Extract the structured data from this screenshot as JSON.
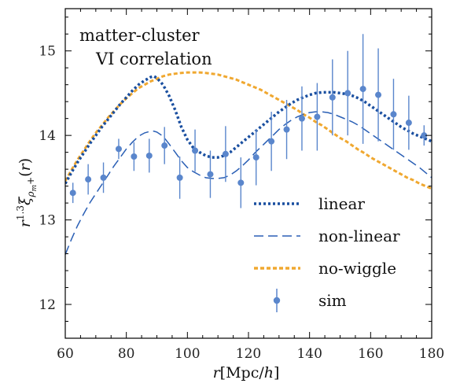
{
  "chart_data": {
    "type": "line",
    "xlabel": "r[Mpc/h]",
    "ylabel": "r^{1.3} ξ_{ρm+}(r)",
    "annotation": [
      "matter-cluster",
      "VI correlation"
    ],
    "xlim": [
      60,
      180
    ],
    "ylim": [
      11.6,
      15.5
    ],
    "xticks": [
      60,
      80,
      100,
      120,
      140,
      160,
      180
    ],
    "yticks": [
      12,
      13,
      14,
      15
    ],
    "legend_position": "lower-right",
    "colors": {
      "linear": "#1a4fa0",
      "nonlinear": "#2a5fb5",
      "nowiggle": "#f0a830",
      "sim": "#5a86cc"
    },
    "series": [
      {
        "name": "linear",
        "style": "dotted",
        "x": [
          60,
          62,
          64,
          66,
          68,
          70,
          72,
          74,
          76,
          78,
          80,
          82,
          84,
          86,
          88,
          89,
          90,
          92,
          94,
          96,
          98,
          100,
          102,
          104,
          106,
          108,
          110,
          112,
          114,
          116,
          118,
          120,
          122,
          124,
          126,
          128,
          130,
          132,
          134,
          136,
          138,
          140,
          142,
          144,
          146,
          148,
          150,
          152,
          154,
          156,
          158,
          160,
          162,
          164,
          166,
          168,
          170,
          172,
          174,
          176,
          178,
          180
        ],
        "y": [
          13.43,
          13.56,
          13.68,
          13.79,
          13.9,
          14,
          14.1,
          14.19,
          14.28,
          14.37,
          14.45,
          14.53,
          14.6,
          14.65,
          14.69,
          14.7,
          14.68,
          14.6,
          14.47,
          14.3,
          14.1,
          13.95,
          13.85,
          13.8,
          13.76,
          13.74,
          13.74,
          13.76,
          13.8,
          13.86,
          13.92,
          13.98,
          14.04,
          14.1,
          14.16,
          14.22,
          14.28,
          14.33,
          14.38,
          14.42,
          14.45,
          14.48,
          14.5,
          14.51,
          14.51,
          14.51,
          14.5,
          14.49,
          14.47,
          14.44,
          14.4,
          14.35,
          14.3,
          14.25,
          14.2,
          14.15,
          14.1,
          14.06,
          14.02,
          13.99,
          13.96,
          13.93
        ]
      },
      {
        "name": "non-linear",
        "style": "dashed",
        "x": [
          60,
          62,
          64,
          66,
          68,
          70,
          72,
          74,
          76,
          78,
          80,
          82,
          84,
          86,
          88,
          89,
          90,
          92,
          94,
          96,
          98,
          100,
          102,
          104,
          106,
          108,
          110,
          112,
          114,
          116,
          118,
          120,
          122,
          124,
          126,
          128,
          130,
          132,
          134,
          136,
          138,
          140,
          142,
          144,
          146,
          148,
          150,
          152,
          154,
          156,
          158,
          160,
          162,
          164,
          166,
          168,
          170,
          172,
          174,
          176,
          178,
          180
        ],
        "y": [
          12.59,
          12.77,
          12.93,
          13.07,
          13.2,
          13.31,
          13.42,
          13.53,
          13.64,
          13.74,
          13.84,
          13.92,
          13.99,
          14.03,
          14.05,
          14.05,
          14.04,
          13.99,
          13.9,
          13.8,
          13.7,
          13.62,
          13.57,
          13.53,
          13.5,
          13.49,
          13.49,
          13.5,
          13.53,
          13.58,
          13.64,
          13.71,
          13.79,
          13.86,
          13.93,
          14,
          14.07,
          14.13,
          14.18,
          14.22,
          14.25,
          14.27,
          14.28,
          14.28,
          14.27,
          14.25,
          14.22,
          14.19,
          14.16,
          14.12,
          14.07,
          14.02,
          13.97,
          13.92,
          13.87,
          13.82,
          13.77,
          13.72,
          13.67,
          13.62,
          13.56,
          13.5
        ]
      },
      {
        "name": "no-wiggle",
        "style": "dashed",
        "x": [
          60,
          62,
          64,
          66,
          68,
          70,
          72,
          74,
          76,
          78,
          80,
          82,
          84,
          86,
          88,
          90,
          92,
          94,
          96,
          98,
          100,
          102,
          104,
          106,
          108,
          110,
          112,
          114,
          116,
          118,
          120,
          122,
          124,
          126,
          128,
          130,
          132,
          134,
          136,
          138,
          140,
          142,
          144,
          146,
          148,
          150,
          152,
          154,
          156,
          158,
          160,
          162,
          164,
          166,
          168,
          170,
          172,
          174,
          176,
          178,
          180
        ],
        "y": [
          13.46,
          13.59,
          13.71,
          13.82,
          13.93,
          14.03,
          14.12,
          14.21,
          14.29,
          14.37,
          14.44,
          14.5,
          14.56,
          14.6,
          14.64,
          14.67,
          14.7,
          14.72,
          14.73,
          14.74,
          14.745,
          14.745,
          14.745,
          14.74,
          14.73,
          14.72,
          14.7,
          14.68,
          14.66,
          14.63,
          14.6,
          14.57,
          14.54,
          14.5,
          14.46,
          14.42,
          14.38,
          14.34,
          14.3,
          14.25,
          14.21,
          14.16,
          14.12,
          14.07,
          14.02,
          13.97,
          13.93,
          13.88,
          13.83,
          13.79,
          13.74,
          13.7,
          13.66,
          13.62,
          13.58,
          13.54,
          13.5,
          13.47,
          13.43,
          13.4,
          13.37
        ]
      },
      {
        "name": "sim",
        "style": "errorbar",
        "x": [
          62.5,
          67.5,
          72.5,
          77.5,
          82.5,
          87.5,
          92.5,
          97.5,
          102.5,
          107.5,
          112.5,
          117.5,
          122.5,
          127.5,
          132.5,
          137.5,
          142.5,
          147.5,
          152.5,
          157.5,
          162.5,
          167.5,
          172.5,
          177.5
        ],
        "y": [
          13.32,
          13.48,
          13.5,
          13.84,
          13.75,
          13.76,
          13.88,
          13.5,
          13.82,
          13.54,
          13.78,
          13.44,
          13.74,
          13.93,
          14.07,
          14.2,
          14.22,
          14.45,
          14.5,
          14.55,
          14.48,
          14.25,
          14.15,
          14.0
        ],
        "yerr": [
          0.12,
          0.18,
          0.18,
          0.12,
          0.17,
          0.2,
          0.22,
          0.25,
          0.25,
          0.28,
          0.33,
          0.3,
          0.33,
          0.35,
          0.35,
          0.38,
          0.4,
          0.45,
          0.5,
          0.65,
          0.55,
          0.42,
          0.32,
          0.12
        ]
      }
    ]
  }
}
